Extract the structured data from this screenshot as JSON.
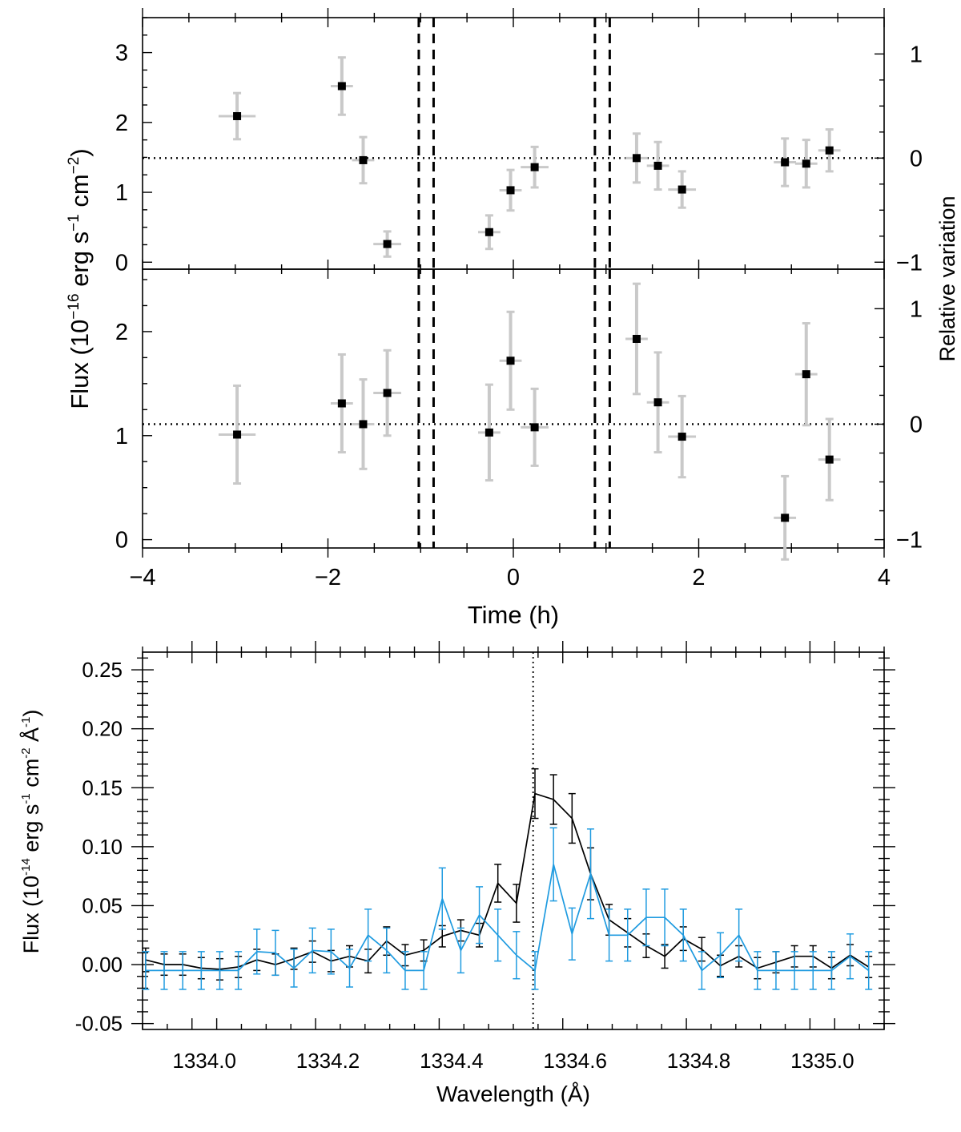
{
  "chart_data": [
    {
      "type": "scatter",
      "panel": "top",
      "xlim": [
        -4,
        4
      ],
      "ylim": [
        -0.1,
        3.5
      ],
      "yticks": [
        0,
        1,
        2,
        3
      ],
      "y2ticks": [
        {
          "value": 1,
          "label": "1"
        },
        {
          "value": 0,
          "label": "0"
        },
        {
          "value": -1,
          "label": "−1"
        }
      ],
      "baseline": 1.49,
      "rel_scale": 1.49,
      "vlines": [
        -1.02,
        -0.86,
        0.88,
        1.04
      ],
      "points": [
        {
          "x": -2.98,
          "y": 2.09,
          "xerr": 0.2,
          "yerr": 0.33
        },
        {
          "x": -1.85,
          "y": 2.52,
          "xerr": 0.12,
          "yerr": 0.41
        },
        {
          "x": -1.62,
          "y": 1.46,
          "xerr": 0.12,
          "yerr": 0.33
        },
        {
          "x": -1.36,
          "y": 0.26,
          "xerr": 0.15,
          "yerr": 0.18
        },
        {
          "x": -0.26,
          "y": 0.43,
          "xerr": 0.12,
          "yerr": 0.24
        },
        {
          "x": -0.03,
          "y": 1.03,
          "xerr": 0.12,
          "yerr": 0.29
        },
        {
          "x": 0.23,
          "y": 1.36,
          "xerr": 0.15,
          "yerr": 0.29
        },
        {
          "x": 1.33,
          "y": 1.49,
          "xerr": 0.12,
          "yerr": 0.35
        },
        {
          "x": 1.56,
          "y": 1.38,
          "xerr": 0.12,
          "yerr": 0.34
        },
        {
          "x": 1.82,
          "y": 1.04,
          "xerr": 0.15,
          "yerr": 0.26
        },
        {
          "x": 2.93,
          "y": 1.43,
          "xerr": 0.12,
          "yerr": 0.34
        },
        {
          "x": 3.16,
          "y": 1.41,
          "xerr": 0.12,
          "yerr": 0.34
        },
        {
          "x": 3.41,
          "y": 1.6,
          "xerr": 0.12,
          "yerr": 0.3
        }
      ]
    },
    {
      "type": "scatter",
      "panel": "middle",
      "xlim": [
        -4,
        4
      ],
      "xticks": [
        -4,
        -2,
        0,
        2,
        4
      ],
      "xticklabels": [
        "−4",
        "−2",
        "0",
        "2",
        "4"
      ],
      "xlabel": "Time (h)",
      "ylim": [
        -0.08,
        2.6
      ],
      "yticks": [
        0,
        1,
        2
      ],
      "y2ticks": [
        {
          "value": 1,
          "label": "1"
        },
        {
          "value": 0,
          "label": "0"
        },
        {
          "value": -1,
          "label": "−1"
        }
      ],
      "baseline": 1.11,
      "rel_scale": 1.11,
      "vlines": [
        -1.02,
        -0.86,
        0.88,
        1.04
      ],
      "points": [
        {
          "x": -2.98,
          "y": 1.01,
          "xerr": 0.2,
          "yerr": 0.47
        },
        {
          "x": -1.85,
          "y": 1.31,
          "xerr": 0.12,
          "yerr": 0.47
        },
        {
          "x": -1.62,
          "y": 1.11,
          "xerr": 0.12,
          "yerr": 0.43
        },
        {
          "x": -1.36,
          "y": 1.41,
          "xerr": 0.15,
          "yerr": 0.41
        },
        {
          "x": -0.26,
          "y": 1.03,
          "xerr": 0.12,
          "yerr": 0.46
        },
        {
          "x": -0.03,
          "y": 1.72,
          "xerr": 0.12,
          "yerr": 0.47
        },
        {
          "x": 0.23,
          "y": 1.08,
          "xerr": 0.15,
          "yerr": 0.37
        },
        {
          "x": 1.33,
          "y": 1.93,
          "xerr": 0.12,
          "yerr": 0.53
        },
        {
          "x": 1.56,
          "y": 1.32,
          "xerr": 0.12,
          "yerr": 0.48
        },
        {
          "x": 1.82,
          "y": 0.99,
          "xerr": 0.15,
          "yerr": 0.39
        },
        {
          "x": 2.93,
          "y": 0.21,
          "xerr": 0.12,
          "yerr": 0.4
        },
        {
          "x": 3.16,
          "y": 1.59,
          "xerr": 0.12,
          "yerr": 0.49
        },
        {
          "x": 3.41,
          "y": 0.77,
          "xerr": 0.12,
          "yerr": 0.39
        }
      ]
    },
    {
      "type": "line",
      "panel": "bottom",
      "xlabel": "Wavelength (Å)",
      "xlim": [
        1333.9,
        1335.1
      ],
      "ylim": [
        -0.055,
        0.265
      ],
      "xticks": [
        1334.0,
        1334.2,
        1334.4,
        1334.6,
        1334.8,
        1335.0
      ],
      "xticklabels": [
        "1334.0",
        "1334.2",
        "1334.4",
        "1334.6",
        "1334.8",
        "1335.0"
      ],
      "yticks": [
        -0.05,
        0.0,
        0.05,
        0.1,
        0.15,
        0.2,
        0.25
      ],
      "yticklabels": [
        "-0.05",
        "0.00",
        "0.05",
        "0.10",
        "0.15",
        "0.20",
        "0.25"
      ],
      "vline": 1334.532,
      "x": [
        1333.905,
        1333.935,
        1333.965,
        1333.995,
        1334.025,
        1334.055,
        1334.085,
        1334.115,
        1334.145,
        1334.175,
        1334.205,
        1334.235,
        1334.265,
        1334.295,
        1334.325,
        1334.355,
        1334.385,
        1334.415,
        1334.445,
        1334.475,
        1334.505,
        1334.535,
        1334.565,
        1334.595,
        1334.625,
        1334.655,
        1334.685,
        1334.715,
        1334.745,
        1334.775,
        1334.805,
        1334.835,
        1334.865,
        1334.895,
        1334.925,
        1334.955,
        1334.985,
        1335.015,
        1335.045,
        1335.075
      ],
      "series": [
        {
          "color": "#000000",
          "values": [
            0.004,
            0.0,
            0.0,
            -0.003,
            -0.004,
            -0.002,
            0.004,
            0.0,
            0.005,
            0.011,
            0.003,
            0.007,
            0.003,
            0.02,
            0.008,
            0.012,
            0.024,
            0.029,
            0.025,
            0.069,
            0.052,
            0.145,
            0.14,
            0.124,
            0.077,
            0.038,
            0.027,
            0.016,
            0.007,
            0.022,
            0.013,
            -0.001,
            0.007,
            -0.003,
            0.002,
            0.007,
            0.007,
            -0.003,
            0.008,
            -0.002
          ],
          "errors": [
            0.01,
            0.009,
            0.009,
            0.009,
            0.009,
            0.009,
            0.009,
            0.009,
            0.009,
            0.009,
            0.009,
            0.009,
            0.01,
            0.012,
            0.009,
            0.009,
            0.009,
            0.009,
            0.01,
            0.016,
            0.016,
            0.021,
            0.021,
            0.021,
            0.022,
            0.013,
            0.012,
            0.01,
            0.01,
            0.01,
            0.01,
            0.009,
            0.009,
            0.009,
            0.009,
            0.009,
            0.009,
            0.009,
            0.009,
            0.009
          ]
        },
        {
          "color": "#1f9be0",
          "values": [
            -0.005,
            -0.005,
            -0.005,
            -0.005,
            -0.005,
            -0.005,
            0.011,
            0.01,
            -0.003,
            0.012,
            0.011,
            -0.003,
            0.025,
            0.012,
            -0.005,
            -0.005,
            0.056,
            0.012,
            0.042,
            0.025,
            0.008,
            -0.005,
            0.085,
            0.026,
            0.077,
            0.025,
            0.025,
            0.04,
            0.04,
            0.025,
            -0.005,
            0.008,
            0.025,
            -0.005,
            -0.005,
            -0.005,
            -0.005,
            -0.005,
            0.007,
            -0.005
          ],
          "errors": [
            0.016,
            0.016,
            0.016,
            0.016,
            0.016,
            0.016,
            0.019,
            0.019,
            0.016,
            0.019,
            0.019,
            0.016,
            0.022,
            0.019,
            0.016,
            0.016,
            0.026,
            0.019,
            0.024,
            0.022,
            0.02,
            0.016,
            0.031,
            0.022,
            0.038,
            0.022,
            0.022,
            0.024,
            0.024,
            0.022,
            0.016,
            0.019,
            0.022,
            0.016,
            0.016,
            0.016,
            0.016,
            0.016,
            0.019,
            0.016
          ]
        }
      ]
    }
  ]
}
